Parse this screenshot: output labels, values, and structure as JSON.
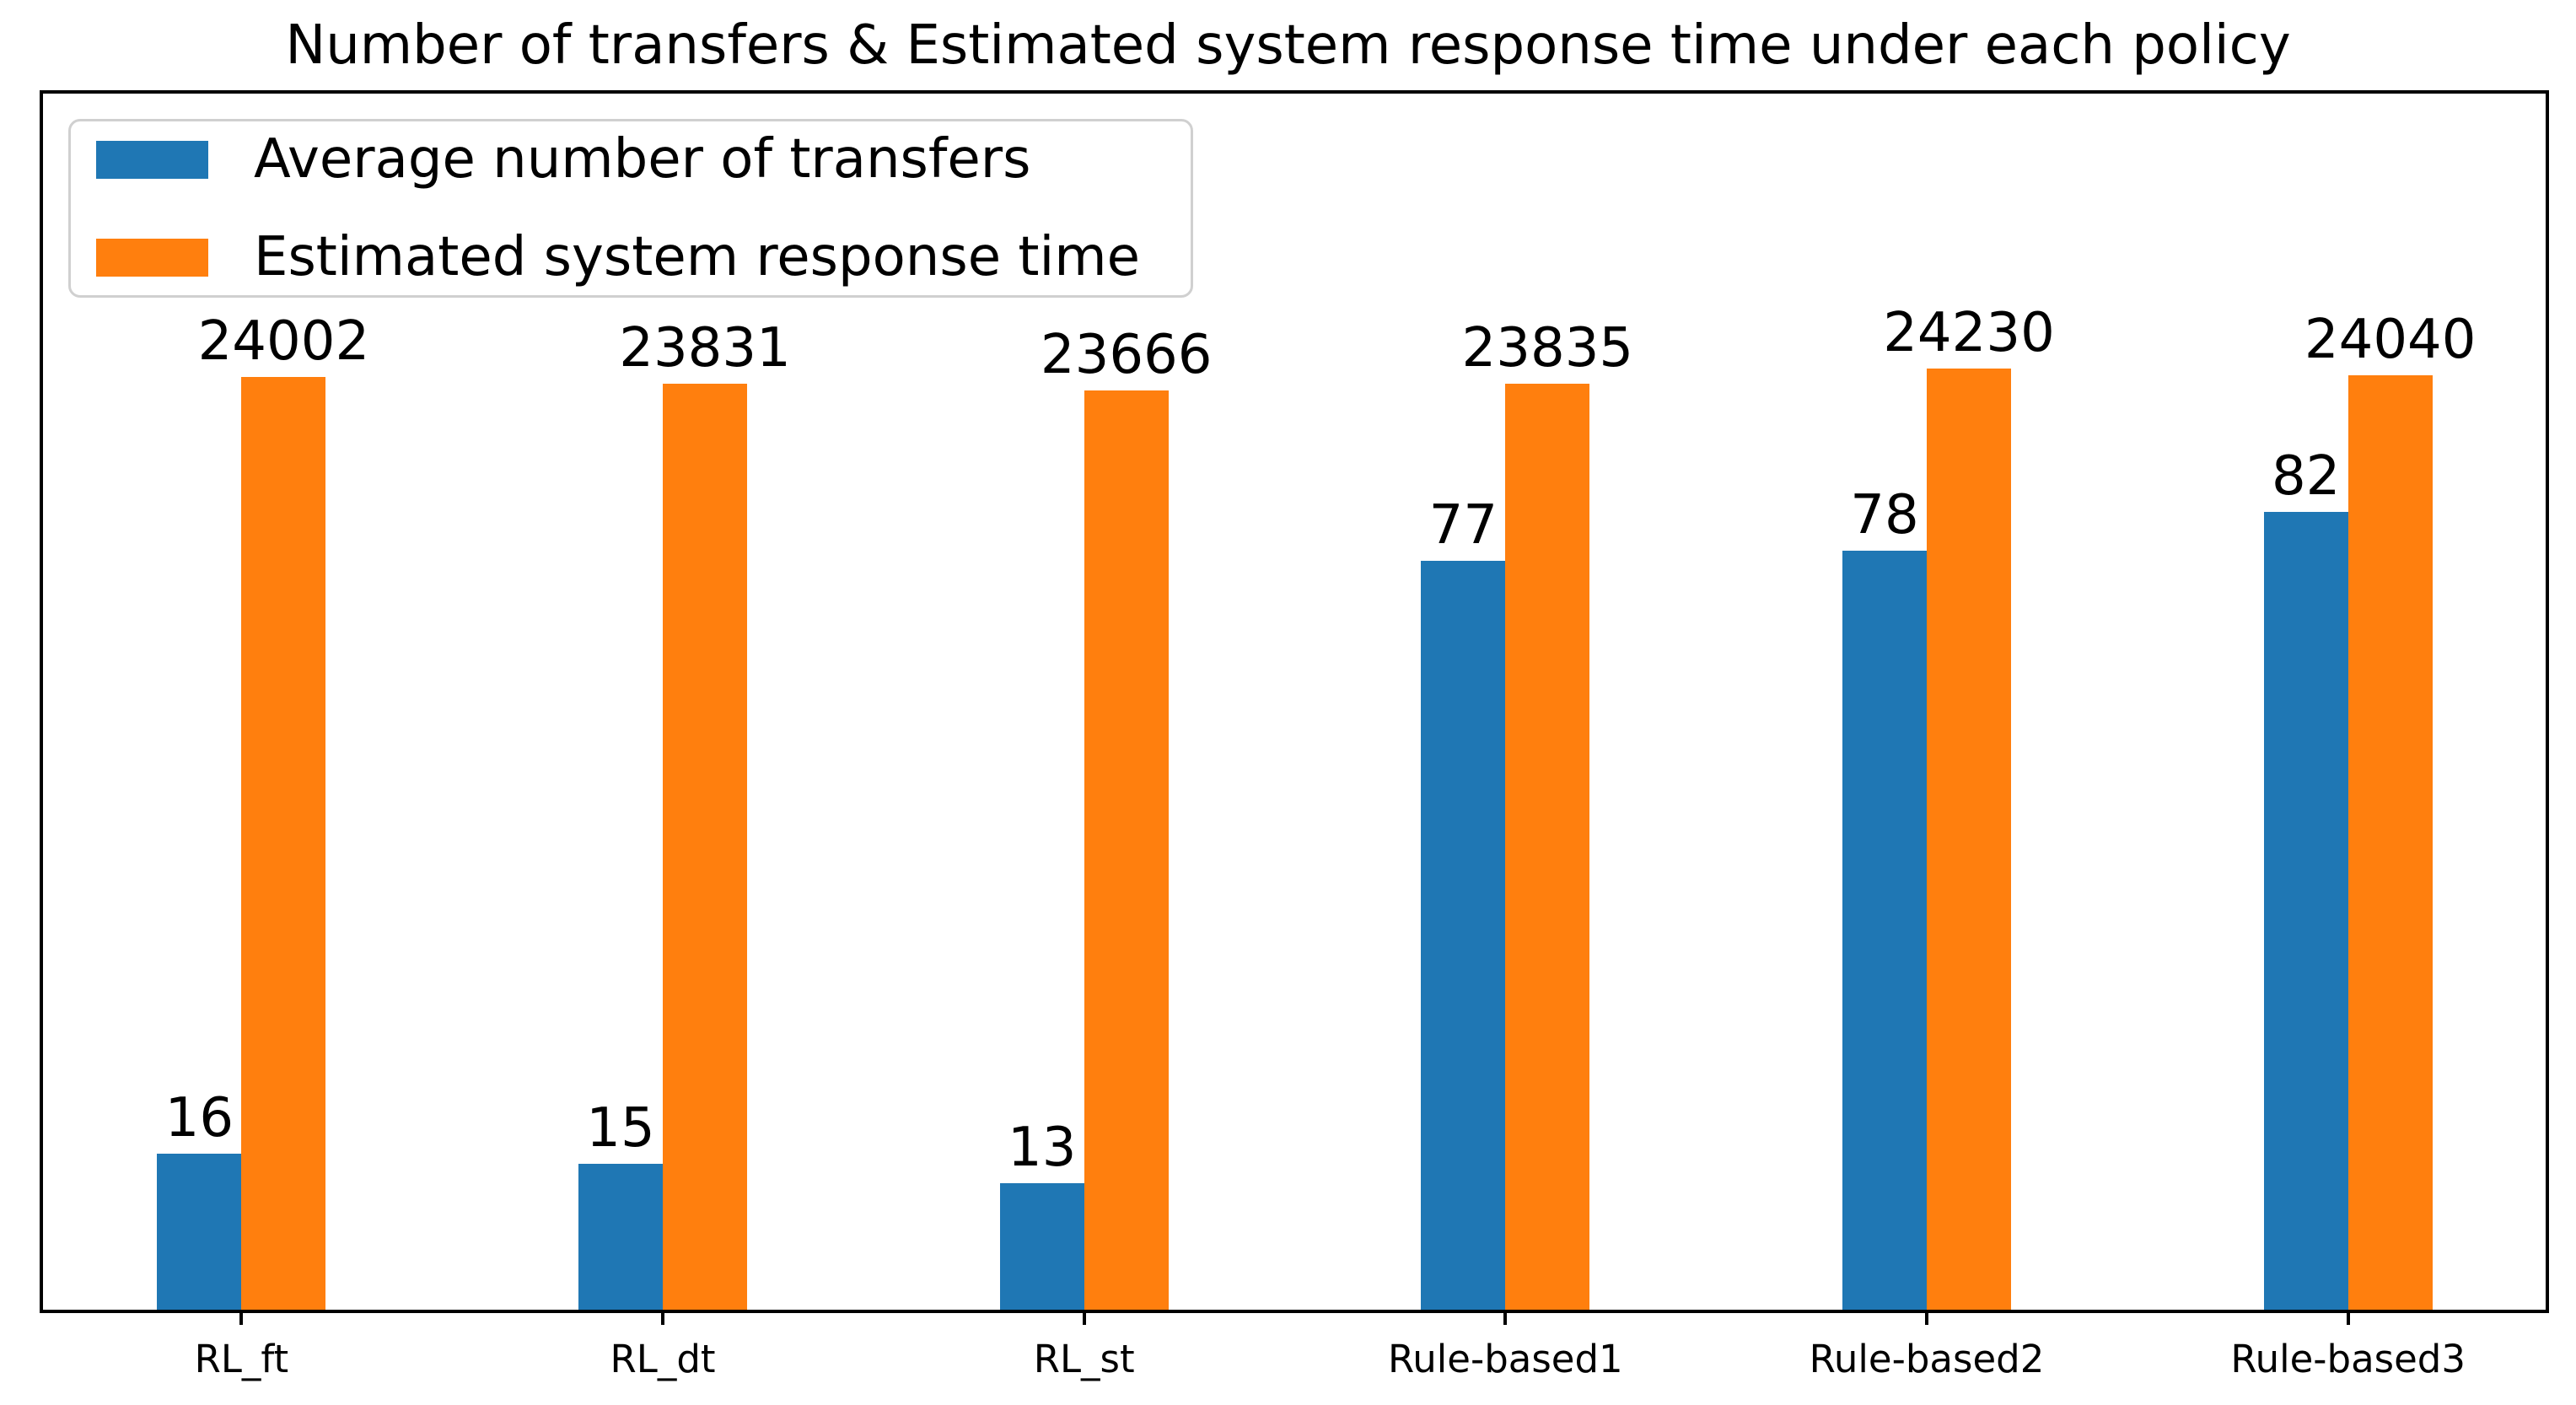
{
  "chart_data": {
    "type": "bar",
    "title": "Number of transfers & Estimated system response time under each policy",
    "categories": [
      "RL_ft",
      "RL_dt",
      "RL_st",
      "Rule-based1",
      "Rule-based2",
      "Rule-based3"
    ],
    "series": [
      {
        "name": "Average number of transfers",
        "color": "#1f77b4",
        "axis": "left",
        "values": [
          16,
          15,
          13,
          77,
          78,
          82
        ]
      },
      {
        "name": "Estimated system response time",
        "color": "#ff7f0e",
        "axis": "right",
        "values": [
          24002,
          23831,
          23666,
          23835,
          24230,
          24040
        ]
      }
    ],
    "bar_value_labels_shown": true,
    "legend_position": "upper left",
    "grid": false,
    "y_axis_ticks_visible": false,
    "y1lim": [
      0,
      125
    ],
    "y2lim": [
      0,
      31300
    ]
  }
}
